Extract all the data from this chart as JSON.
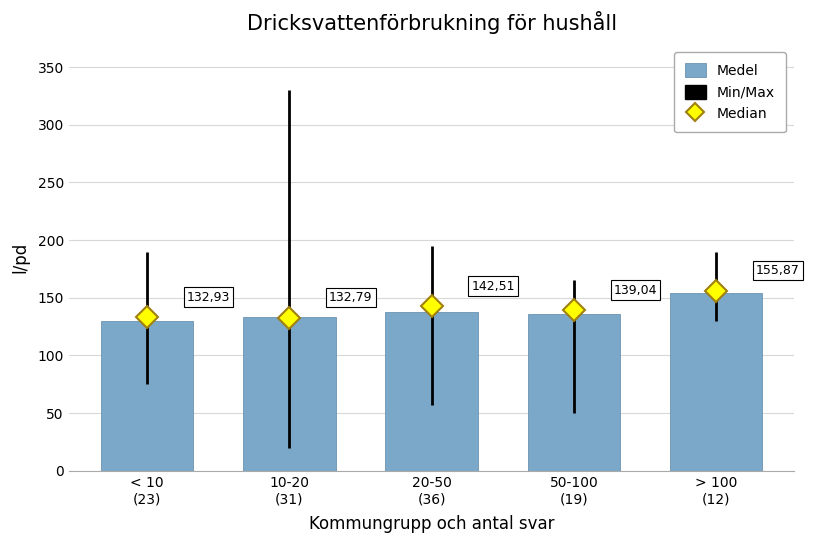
{
  "title": "Dricksvattenförbrukning för hushåll",
  "xlabel": "Kommungrupp och antal svar",
  "ylabel": "l/pd",
  "categories": [
    "< 10\n(23)",
    "10-20\n(31)",
    "20-50\n(36)",
    "50-100\n(19)",
    "> 100\n(12)"
  ],
  "bar_means": [
    130,
    133,
    138,
    136,
    154
  ],
  "medians": [
    132.93,
    132.79,
    142.51,
    139.04,
    155.87
  ],
  "median_labels": [
    "132,93",
    "132,79",
    "142,51",
    "139,04",
    "155,87"
  ],
  "mins": [
    75,
    20,
    57,
    50,
    130
  ],
  "maxs": [
    190,
    330,
    195,
    165,
    190
  ],
  "bar_color": "#7ba7c9",
  "bar_edgecolor": "#5a87a8",
  "errorbar_color": "black",
  "median_color": "#ffff00",
  "median_edgecolor": "#a08010",
  "ylim": [
    0,
    370
  ],
  "yticks": [
    0,
    50,
    100,
    150,
    200,
    250,
    300,
    350
  ],
  "bar_width": 0.65,
  "title_fontsize": 15,
  "axis_label_fontsize": 12,
  "tick_fontsize": 10,
  "annotation_fontsize": 9,
  "legend_fontsize": 10,
  "background_color": "#ffffff",
  "grid_color": "#d8d8d8",
  "figsize": [
    8.16,
    5.44
  ],
  "dpi": 100
}
